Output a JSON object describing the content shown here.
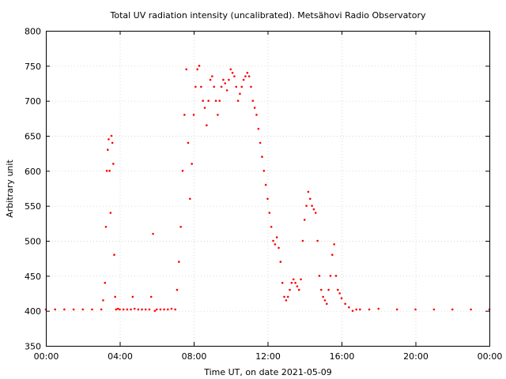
{
  "chart_data": {
    "type": "scatter",
    "title": "Total UV radiation intensity (uncalibrated). Metsähovi Radio Observatory",
    "xlabel": "Time UT, on date 2021-05-09",
    "ylabel": "Arbitrary unit",
    "xlim": [
      0,
      24
    ],
    "ylim": [
      350,
      800
    ],
    "x_ticks": [
      0,
      4,
      8,
      12,
      16,
      20,
      24
    ],
    "x_tick_labels": [
      "00:00",
      "04:00",
      "08:00",
      "12:00",
      "16:00",
      "20:00",
      "00:00"
    ],
    "y_ticks": [
      350,
      400,
      450,
      500,
      550,
      600,
      650,
      700,
      750,
      800
    ],
    "y_tick_labels": [
      "350",
      "400",
      "450",
      "500",
      "550",
      "600",
      "650",
      "700",
      "750",
      "800"
    ],
    "grid": true,
    "color": "#ff0000",
    "series": [
      {
        "x": [
          0.0,
          0.5,
          1.0,
          1.5,
          2.0,
          2.5,
          3.0,
          3.1,
          3.2,
          3.25,
          3.3,
          3.35,
          3.4,
          3.45,
          3.5,
          3.55,
          3.6,
          3.65,
          3.7,
          3.75,
          3.8,
          3.9,
          4.0,
          4.2,
          4.4,
          4.6,
          4.7,
          4.8,
          5.0,
          5.2,
          5.4,
          5.6,
          5.7,
          5.8,
          5.9,
          6.0,
          6.2,
          6.4,
          6.6,
          6.8,
          7.0,
          7.1,
          7.2,
          7.3,
          7.4,
          7.5,
          7.6,
          7.7,
          7.8,
          7.9,
          8.0,
          8.1,
          8.2,
          8.3,
          8.4,
          8.5,
          8.6,
          8.7,
          8.8,
          8.9,
          9.0,
          9.1,
          9.2,
          9.3,
          9.4,
          9.5,
          9.6,
          9.7,
          9.8,
          9.9,
          10.0,
          10.1,
          10.2,
          10.3,
          10.4,
          10.5,
          10.6,
          10.7,
          10.8,
          10.9,
          11.0,
          11.1,
          11.2,
          11.3,
          11.4,
          11.5,
          11.6,
          11.7,
          11.8,
          11.9,
          12.0,
          12.1,
          12.2,
          12.3,
          12.4,
          12.5,
          12.6,
          12.7,
          12.8,
          12.9,
          13.0,
          13.1,
          13.2,
          13.3,
          13.4,
          13.5,
          13.6,
          13.7,
          13.8,
          13.9,
          14.0,
          14.1,
          14.2,
          14.3,
          14.4,
          14.5,
          14.6,
          14.7,
          14.8,
          14.9,
          15.0,
          15.1,
          15.2,
          15.3,
          15.4,
          15.5,
          15.6,
          15.7,
          15.8,
          15.9,
          16.0,
          16.2,
          16.4,
          16.6,
          16.8,
          17.0,
          17.5,
          18.0,
          19.0,
          20.0,
          21.0,
          22.0,
          23.0,
          24.0
        ],
        "y": [
          402,
          402,
          402,
          402,
          402,
          402,
          402,
          415,
          440,
          520,
          600,
          630,
          645,
          600,
          540,
          650,
          640,
          610,
          480,
          420,
          402,
          403,
          402,
          402,
          402,
          402,
          420,
          403,
          402,
          402,
          402,
          402,
          420,
          510,
          400,
          402,
          402,
          402,
          402,
          403,
          402,
          430,
          470,
          520,
          600,
          680,
          745,
          640,
          560,
          610,
          680,
          720,
          745,
          750,
          720,
          700,
          690,
          665,
          700,
          730,
          735,
          720,
          700,
          680,
          700,
          720,
          730,
          725,
          715,
          730,
          745,
          740,
          735,
          720,
          700,
          710,
          720,
          730,
          735,
          740,
          735,
          720,
          700,
          690,
          680,
          660,
          640,
          620,
          600,
          580,
          560,
          540,
          520,
          500,
          495,
          505,
          490,
          470,
          440,
          420,
          415,
          420,
          430,
          440,
          445,
          440,
          435,
          430,
          445,
          500,
          530,
          550,
          570,
          560,
          550,
          545,
          540,
          500,
          450,
          430,
          420,
          415,
          410,
          430,
          450,
          480,
          495,
          450,
          430,
          425,
          418,
          410,
          405,
          400,
          402,
          402,
          402,
          403,
          402,
          402,
          402,
          402,
          402,
          402
        ]
      }
    ]
  }
}
